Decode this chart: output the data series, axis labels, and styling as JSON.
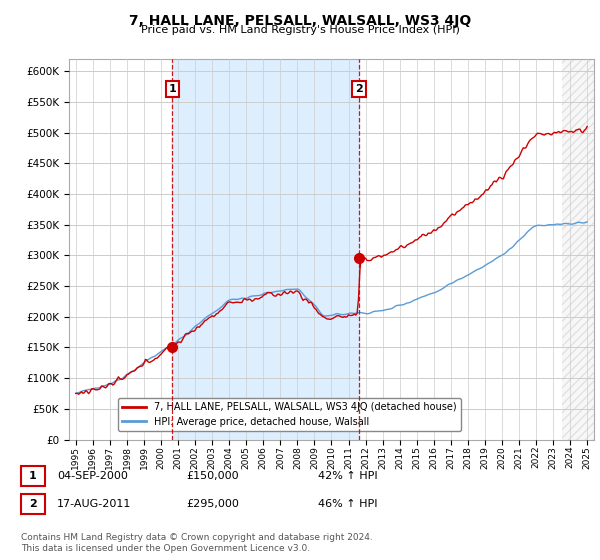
{
  "title": "7, HALL LANE, PELSALL, WALSALL, WS3 4JQ",
  "subtitle": "Price paid vs. HM Land Registry's House Price Index (HPI)",
  "legend_line1": "7, HALL LANE, PELSALL, WALSALL, WS3 4JQ (detached house)",
  "legend_line2": "HPI: Average price, detached house, Walsall",
  "annotation1_date": "04-SEP-2000",
  "annotation1_price": "£150,000",
  "annotation1_hpi": "42% ↑ HPI",
  "annotation2_date": "17-AUG-2011",
  "annotation2_price": "£295,000",
  "annotation2_hpi": "46% ↑ HPI",
  "footer": "Contains HM Land Registry data © Crown copyright and database right 2024.\nThis data is licensed under the Open Government Licence v3.0.",
  "red_color": "#cc0000",
  "blue_color": "#5b9bd5",
  "dashed_color": "#cc0000",
  "shade_color": "#ddeeff",
  "background_color": "#ffffff",
  "grid_color": "#cccccc",
  "ylim": [
    0,
    620000
  ],
  "yticks": [
    0,
    50000,
    100000,
    150000,
    200000,
    250000,
    300000,
    350000,
    400000,
    450000,
    500000,
    550000,
    600000
  ],
  "sale1_year": 2000.67,
  "sale1_price": 150000,
  "sale2_year": 2011.62,
  "sale2_price": 295000,
  "xstart": 1995,
  "xend": 2025
}
